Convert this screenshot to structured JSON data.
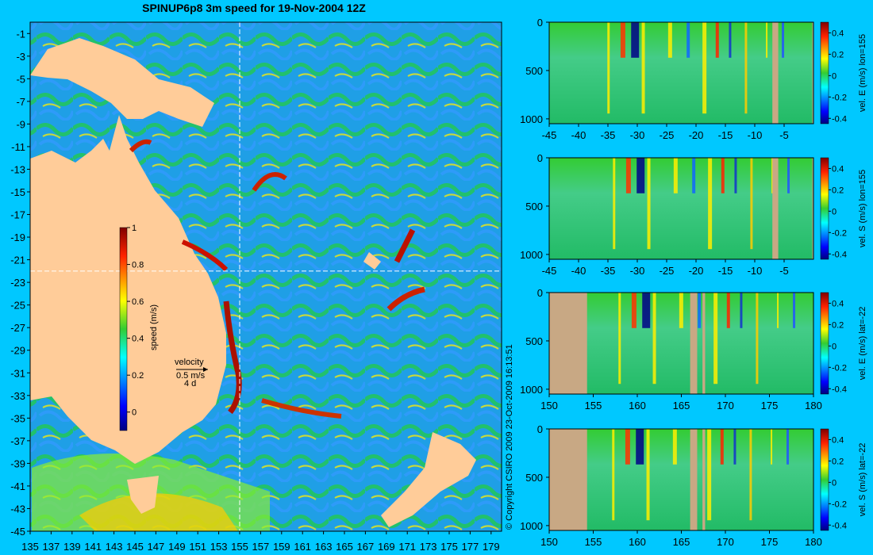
{
  "title": "SPINUP6p8 3m speed for 19-Nov-2004 12Z",
  "copyright": "© Copyright CSIRO 2009   23-Oct-2009 16:13:51",
  "colors": {
    "background": "#00c8ff",
    "land_map": "#ffcc99",
    "land_section": "#c8a884",
    "crosshair": "#ffffff"
  },
  "map": {
    "lon_ticks": [
      "135",
      "137",
      "139",
      "141",
      "143",
      "145",
      "147",
      "149",
      "151",
      "153",
      "155",
      "157",
      "159",
      "161",
      "163",
      "165",
      "167",
      "169",
      "171",
      "173",
      "175",
      "177",
      "179"
    ],
    "lat_ticks": [
      "-1",
      "-3",
      "-5",
      "-7",
      "-9",
      "-11",
      "-13",
      "-15",
      "-17",
      "-19",
      "-21",
      "-23",
      "-25",
      "-27",
      "-29",
      "-31",
      "-33",
      "-35",
      "-37",
      "-39",
      "-41",
      "-43",
      "-45"
    ],
    "lon_range": [
      135,
      180
    ],
    "lat_range": [
      -45,
      0
    ],
    "crosshair": {
      "lon": 155,
      "lat": -22
    },
    "colorbar": {
      "label": "speed (m/s)",
      "ticks": [
        "1",
        "0.8",
        "0.6",
        "0.4",
        "0.2",
        "0"
      ],
      "range": [
        -0.1,
        1.0
      ],
      "tick_values": [
        1,
        0.8,
        0.6,
        0.4,
        0.2,
        0
      ]
    },
    "velocity_legend": {
      "label": "velocity",
      "speed": "0.5 m/s",
      "days": "4 d"
    }
  },
  "chart_data": [
    {
      "type": "heatmap",
      "title": "",
      "label": "vel. E (m/s) lon=155",
      "x_range": [
        -45,
        0
      ],
      "x_ticks": [
        "-45",
        "-40",
        "-35",
        "-30",
        "-25",
        "-20",
        "-15",
        "-10",
        "-5"
      ],
      "x_tick_values": [
        -45,
        -40,
        -35,
        -30,
        -25,
        -20,
        -15,
        -10,
        -5
      ],
      "depth_ticks": [
        "0",
        "500",
        "1000"
      ],
      "depth_tick_values": [
        0,
        500,
        1000
      ],
      "depth_range": [
        0,
        1050
      ],
      "cbar_ticks": [
        "0.4",
        "0.2",
        "0",
        "-0.2",
        "-0.4"
      ],
      "cbar_values": [
        0.4,
        0.2,
        0,
        -0.2,
        -0.4
      ],
      "cbar_range": [
        -0.45,
        0.5
      ],
      "land_x": [
        [
          -7,
          -6
        ],
        [
          -0.2,
          0
        ]
      ]
    },
    {
      "type": "heatmap",
      "title": "",
      "label": "vel. S (m/s) lon=155",
      "x_range": [
        -45,
        0
      ],
      "x_ticks": [
        "-45",
        "-40",
        "-35",
        "-30",
        "-25",
        "-20",
        "-15",
        "-10",
        "-5"
      ],
      "x_tick_values": [
        -45,
        -40,
        -35,
        -30,
        -25,
        -20,
        -15,
        -10,
        -5
      ],
      "depth_ticks": [
        "0",
        "500",
        "1000"
      ],
      "depth_tick_values": [
        0,
        500,
        1000
      ],
      "depth_range": [
        0,
        1050
      ],
      "cbar_ticks": [
        "0.4",
        "0.2",
        "0",
        "-0.2",
        "-0.4"
      ],
      "cbar_values": [
        0.4,
        0.2,
        0,
        -0.2,
        -0.4
      ],
      "cbar_range": [
        -0.45,
        0.5
      ],
      "land_x": [
        [
          -7,
          -6
        ],
        [
          -0.2,
          0
        ]
      ]
    },
    {
      "type": "heatmap",
      "title": "",
      "label": "vel. E (m/s) lat=-22",
      "x_range": [
        150,
        180
      ],
      "x_ticks": [
        "150",
        "155",
        "160",
        "165",
        "170",
        "175",
        "180"
      ],
      "x_tick_values": [
        150,
        155,
        160,
        165,
        170,
        175,
        180
      ],
      "depth_ticks": [
        "0",
        "500",
        "1000"
      ],
      "depth_tick_values": [
        0,
        500,
        1000
      ],
      "depth_range": [
        0,
        1050
      ],
      "cbar_ticks": [
        "0.4",
        "0.2",
        "0",
        "-0.2",
        "-0.4"
      ],
      "cbar_values": [
        0.4,
        0.2,
        0,
        -0.2,
        -0.4
      ],
      "cbar_range": [
        -0.45,
        0.5
      ],
      "land_x": [
        [
          150,
          154.3
        ],
        [
          166,
          166.8
        ],
        [
          167.4,
          167.7
        ]
      ]
    },
    {
      "type": "heatmap",
      "title": "",
      "label": "vel. S (m/s) lat=-22",
      "x_range": [
        150,
        180
      ],
      "x_ticks": [
        "150",
        "155",
        "160",
        "165",
        "170",
        "175",
        "180"
      ],
      "x_tick_values": [
        150,
        155,
        160,
        165,
        170,
        175,
        180
      ],
      "depth_ticks": [
        "0",
        "500",
        "1000"
      ],
      "depth_tick_values": [
        0,
        500,
        1000
      ],
      "depth_range": [
        0,
        1050
      ],
      "cbar_ticks": [
        "0.4",
        "0.2",
        "0",
        "-0.2",
        "-0.4"
      ],
      "cbar_values": [
        0.4,
        0.2,
        0,
        -0.2,
        -0.4
      ],
      "cbar_range": [
        -0.45,
        0.5
      ],
      "land_x": [
        [
          150,
          154.3
        ],
        [
          166,
          166.8
        ],
        [
          167.4,
          167.7
        ]
      ]
    }
  ]
}
